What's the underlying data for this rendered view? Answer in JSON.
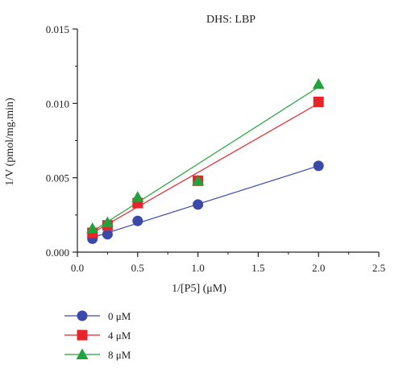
{
  "chart_data": {
    "type": "scatter",
    "title": "DHS: LBP",
    "xlabel": "1/[P5] (μM)",
    "ylabel": "1/V (pmol/mg.min)",
    "xlim": [
      0.0,
      2.5
    ],
    "ylim": [
      0.0,
      0.015
    ],
    "x_ticks": [
      "0.0",
      "0.5",
      "1.0",
      "1.5",
      "2.0",
      "2.5"
    ],
    "y_ticks": [
      "0.000",
      "0.005",
      "0.010",
      "0.015"
    ],
    "grid": false,
    "legend_position": "bottom-left",
    "series": [
      {
        "name": "0 μM",
        "marker": "circle",
        "color": "#3b4aa8",
        "x": [
          0.125,
          0.25,
          0.5,
          1.0,
          2.0
        ],
        "y": [
          0.0009,
          0.0012,
          0.0021,
          0.0032,
          0.0058
        ],
        "fit": [
          [
            0.125,
            0.00098
          ],
          [
            2.0,
            0.0058
          ]
        ]
      },
      {
        "name": "4 μM",
        "marker": "square",
        "color": "#e8242a",
        "x": [
          0.125,
          0.25,
          0.5,
          1.0,
          2.0
        ],
        "y": [
          0.0013,
          0.0018,
          0.0033,
          0.0048,
          0.0101
        ],
        "fit": [
          [
            0.125,
            0.0013
          ],
          [
            2.0,
            0.01
          ]
        ]
      },
      {
        "name": "8 μM",
        "marker": "triangle",
        "color": "#1fa33a",
        "x": [
          0.125,
          0.25,
          0.5,
          1.0,
          2.0
        ],
        "y": [
          0.0016,
          0.002,
          0.0037,
          0.0048,
          0.0113
        ],
        "fit": [
          [
            0.125,
            0.0014
          ],
          [
            2.0,
            0.0111
          ]
        ]
      }
    ]
  }
}
